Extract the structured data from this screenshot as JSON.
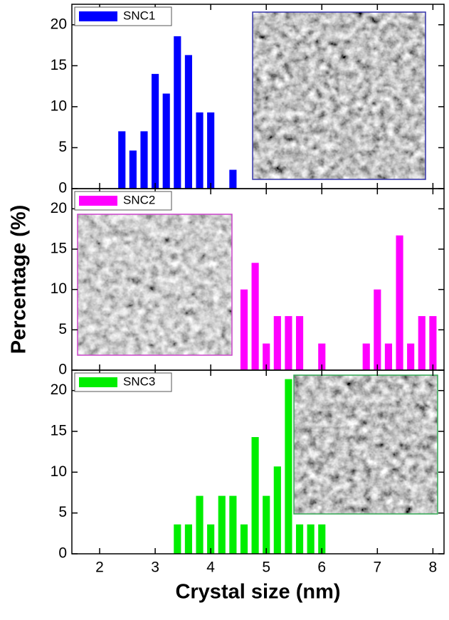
{
  "chart_data": [
    {
      "type": "bar",
      "xlim": [
        1.5,
        8.2
      ],
      "ylim": [
        0,
        22.5
      ],
      "yticks": [
        0,
        5,
        10,
        15,
        20
      ],
      "x": [
        2.4,
        2.6,
        2.8,
        3.0,
        3.2,
        3.4,
        3.6,
        3.8,
        4.0,
        4.4
      ],
      "series": [
        {
          "name": "SNC1",
          "color": "#0000ff",
          "values": [
            7,
            4.65,
            7,
            14,
            11.6,
            18.6,
            16.3,
            9.3,
            9.3,
            2.3
          ]
        }
      ]
    },
    {
      "type": "bar",
      "ylabel": "Percentage (%)",
      "xlim": [
        1.5,
        8.2
      ],
      "ylim": [
        0,
        22.5
      ],
      "yticks": [
        0,
        5,
        10,
        15,
        20
      ],
      "x": [
        4.6,
        4.8,
        5.0,
        5.2,
        5.4,
        5.6,
        6.0,
        6.8,
        7.0,
        7.2,
        7.4,
        7.6,
        7.8,
        8.0
      ],
      "series": [
        {
          "name": "SNC2",
          "color": "#ff00ff",
          "values": [
            10,
            13.3,
            3.3,
            6.7,
            6.7,
            6.7,
            3.3,
            3.3,
            10,
            3.3,
            16.7,
            3.3,
            6.7,
            6.7
          ]
        }
      ]
    },
    {
      "type": "bar",
      "xlabel": "Crystal size (nm)",
      "xlim": [
        1.5,
        8.2
      ],
      "ylim": [
        0,
        22.5
      ],
      "yticks": [
        0,
        5,
        10,
        15,
        20
      ],
      "xticks": [
        2,
        3,
        4,
        5,
        6,
        7,
        8
      ],
      "x": [
        3.4,
        3.6,
        3.8,
        4.0,
        4.2,
        4.4,
        4.6,
        4.8,
        5.0,
        5.2,
        5.4,
        5.6,
        5.8,
        6.0
      ],
      "series": [
        {
          "name": "SNC3",
          "color": "#00ee00",
          "values": [
            3.6,
            3.6,
            7.1,
            3.6,
            7.1,
            7.1,
            3.6,
            14.3,
            7.1,
            10.7,
            21.4,
            3.6,
            3.6,
            3.6
          ]
        }
      ]
    }
  ]
}
